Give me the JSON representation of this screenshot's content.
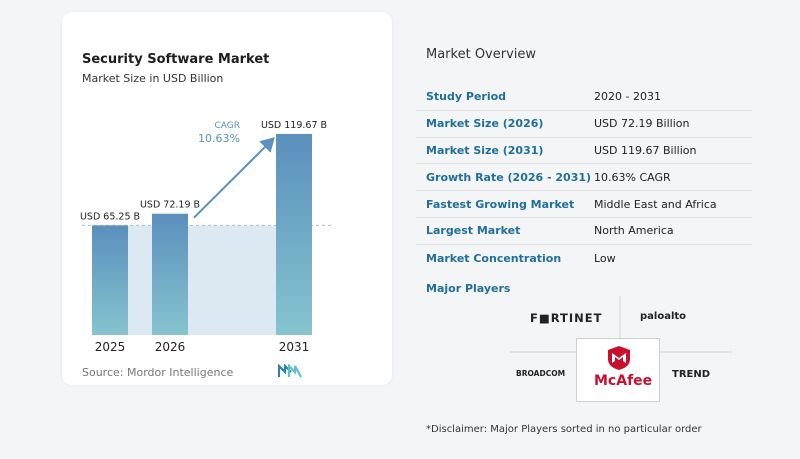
{
  "chart": {
    "title": "Security Software Market",
    "subtitle": "Market Size in USD Billion",
    "source": "Source: Mordor Intelligence"
  },
  "chart_data": {
    "type": "bar",
    "categories": [
      "2025",
      "2026",
      "2031"
    ],
    "values": [
      65.25,
      72.19,
      119.67
    ],
    "data_labels": [
      "USD 65.25 B",
      "USD 72.19 B",
      "USD 119.67 B"
    ],
    "annotation": {
      "label": "CAGR",
      "value": "10.63%"
    },
    "title": "Security Software Market",
    "subtitle": "Market Size in USD Billion",
    "xlabel": "",
    "ylabel": "",
    "ylim": [
      0,
      125
    ],
    "grid": false,
    "colors": {
      "bar_top": "#5b8fbd",
      "bar_bottom": "#86c4cf",
      "band": "#dde9f2",
      "arrow": "#5b91bd",
      "cagr": "#5b91bd"
    }
  },
  "overview": {
    "title": "Market Overview",
    "rows": [
      {
        "key": "Study Period",
        "value": "2020 - 2031"
      },
      {
        "key": "Market Size (2026)",
        "value": "USD 72.19 Billion"
      },
      {
        "key": "Market Size (2031)",
        "value": "USD 119.67 Billion"
      },
      {
        "key": "Growth Rate (2026 - 2031)",
        "value": "10.63% CAGR"
      },
      {
        "key": "Fastest Growing Market",
        "value": "Middle East and Africa"
      },
      {
        "key": "Largest Market",
        "value": "North America"
      },
      {
        "key": "Market Concentration",
        "value": "Low"
      }
    ]
  },
  "players": {
    "title": "Major Players",
    "logos": {
      "fortinet": "F■RTINET",
      "paloalto": "paloalto",
      "broadcom": "BROADCOM",
      "mcafee": "McAfee",
      "trend": "TREND"
    },
    "disclaimer": "*Disclaimer: Major Players sorted in no particular order"
  },
  "icons": {
    "source_logo": "mordor-intelligence-logo-icon",
    "mcafee_shield": "mcafee-shield-icon"
  }
}
